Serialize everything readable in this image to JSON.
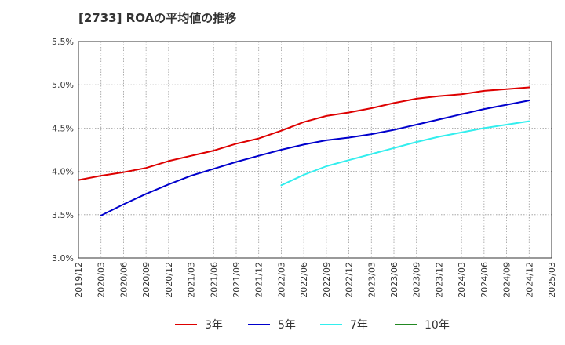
{
  "title": "[2733]  ROAの平均値の推移",
  "chart_data": {
    "type": "line",
    "title": "[2733]  ROAの平均値の推移",
    "xlabel": "",
    "ylabel": "",
    "ylim": [
      3.0,
      5.5
    ],
    "yticks": [
      "3.0%",
      "3.5%",
      "4.0%",
      "4.5%",
      "5.0%",
      "5.5%"
    ],
    "ytick_values": [
      3.0,
      3.5,
      4.0,
      4.5,
      5.0,
      5.5
    ],
    "x": [
      "2019/12",
      "2020/03",
      "2020/06",
      "2020/09",
      "2020/12",
      "2021/03",
      "2021/06",
      "2021/09",
      "2021/12",
      "2022/03",
      "2022/06",
      "2022/09",
      "2022/12",
      "2023/03",
      "2023/06",
      "2023/09",
      "2023/12",
      "2024/03",
      "2024/06",
      "2024/09",
      "2024/12",
      "2025/03"
    ],
    "grid": true,
    "legend_position": "bottom",
    "series": [
      {
        "name": "3年",
        "color": "#dd0000",
        "values": [
          3.9,
          3.95,
          3.99,
          4.04,
          4.12,
          4.18,
          4.24,
          4.32,
          4.38,
          4.47,
          4.57,
          4.64,
          4.68,
          4.73,
          4.79,
          4.84,
          4.87,
          4.89,
          4.93,
          4.95,
          4.97,
          null
        ]
      },
      {
        "name": "5年",
        "color": "#0000cc",
        "values": [
          null,
          3.49,
          3.62,
          3.74,
          3.85,
          3.95,
          4.03,
          4.11,
          4.18,
          4.25,
          4.31,
          4.36,
          4.39,
          4.43,
          4.48,
          4.54,
          4.6,
          4.66,
          4.72,
          4.77,
          4.82,
          null
        ]
      },
      {
        "name": "7年",
        "color": "#33eeee",
        "values": [
          null,
          null,
          null,
          null,
          null,
          null,
          null,
          null,
          null,
          3.84,
          3.96,
          4.06,
          4.13,
          4.2,
          4.27,
          4.34,
          4.4,
          4.45,
          4.5,
          4.54,
          4.58,
          null
        ]
      },
      {
        "name": "10年",
        "color": "#228822",
        "values": [
          null,
          null,
          null,
          null,
          null,
          null,
          null,
          null,
          null,
          null,
          null,
          null,
          null,
          null,
          null,
          null,
          null,
          null,
          null,
          null,
          null,
          null
        ]
      }
    ]
  }
}
